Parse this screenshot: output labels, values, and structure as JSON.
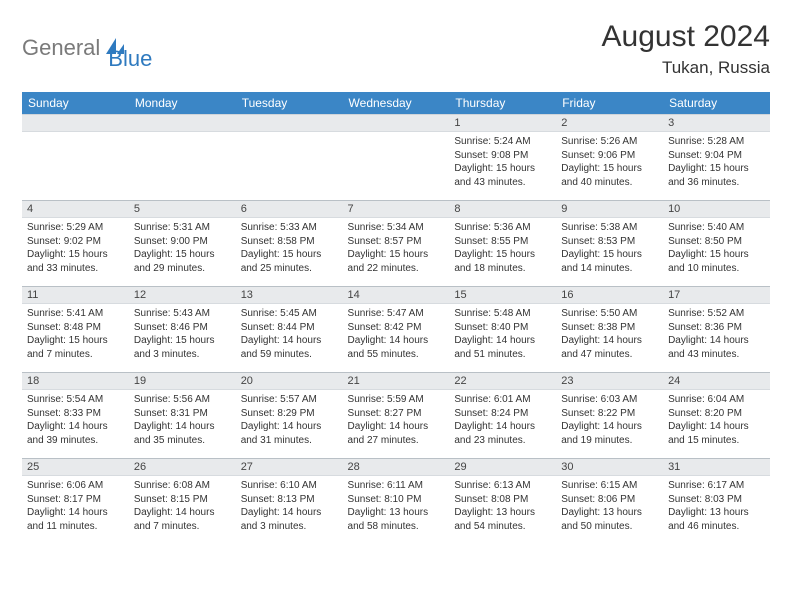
{
  "logo": {
    "word1": "General",
    "word2": "Blue",
    "icon_color": "#2f7abf"
  },
  "title": "August 2024",
  "location": "Tukan, Russia",
  "header_bg": "#3b86c6",
  "stripe_bg": "#e8eaec",
  "weekdays": [
    "Sunday",
    "Monday",
    "Tuesday",
    "Wednesday",
    "Thursday",
    "Friday",
    "Saturday"
  ],
  "weeks": [
    [
      null,
      null,
      null,
      null,
      {
        "n": "1",
        "sr": "5:24 AM",
        "ss": "9:08 PM",
        "dl": "15 hours and 43 minutes."
      },
      {
        "n": "2",
        "sr": "5:26 AM",
        "ss": "9:06 PM",
        "dl": "15 hours and 40 minutes."
      },
      {
        "n": "3",
        "sr": "5:28 AM",
        "ss": "9:04 PM",
        "dl": "15 hours and 36 minutes."
      }
    ],
    [
      {
        "n": "4",
        "sr": "5:29 AM",
        "ss": "9:02 PM",
        "dl": "15 hours and 33 minutes."
      },
      {
        "n": "5",
        "sr": "5:31 AM",
        "ss": "9:00 PM",
        "dl": "15 hours and 29 minutes."
      },
      {
        "n": "6",
        "sr": "5:33 AM",
        "ss": "8:58 PM",
        "dl": "15 hours and 25 minutes."
      },
      {
        "n": "7",
        "sr": "5:34 AM",
        "ss": "8:57 PM",
        "dl": "15 hours and 22 minutes."
      },
      {
        "n": "8",
        "sr": "5:36 AM",
        "ss": "8:55 PM",
        "dl": "15 hours and 18 minutes."
      },
      {
        "n": "9",
        "sr": "5:38 AM",
        "ss": "8:53 PM",
        "dl": "15 hours and 14 minutes."
      },
      {
        "n": "10",
        "sr": "5:40 AM",
        "ss": "8:50 PM",
        "dl": "15 hours and 10 minutes."
      }
    ],
    [
      {
        "n": "11",
        "sr": "5:41 AM",
        "ss": "8:48 PM",
        "dl": "15 hours and 7 minutes."
      },
      {
        "n": "12",
        "sr": "5:43 AM",
        "ss": "8:46 PM",
        "dl": "15 hours and 3 minutes."
      },
      {
        "n": "13",
        "sr": "5:45 AM",
        "ss": "8:44 PM",
        "dl": "14 hours and 59 minutes."
      },
      {
        "n": "14",
        "sr": "5:47 AM",
        "ss": "8:42 PM",
        "dl": "14 hours and 55 minutes."
      },
      {
        "n": "15",
        "sr": "5:48 AM",
        "ss": "8:40 PM",
        "dl": "14 hours and 51 minutes."
      },
      {
        "n": "16",
        "sr": "5:50 AM",
        "ss": "8:38 PM",
        "dl": "14 hours and 47 minutes."
      },
      {
        "n": "17",
        "sr": "5:52 AM",
        "ss": "8:36 PM",
        "dl": "14 hours and 43 minutes."
      }
    ],
    [
      {
        "n": "18",
        "sr": "5:54 AM",
        "ss": "8:33 PM",
        "dl": "14 hours and 39 minutes."
      },
      {
        "n": "19",
        "sr": "5:56 AM",
        "ss": "8:31 PM",
        "dl": "14 hours and 35 minutes."
      },
      {
        "n": "20",
        "sr": "5:57 AM",
        "ss": "8:29 PM",
        "dl": "14 hours and 31 minutes."
      },
      {
        "n": "21",
        "sr": "5:59 AM",
        "ss": "8:27 PM",
        "dl": "14 hours and 27 minutes."
      },
      {
        "n": "22",
        "sr": "6:01 AM",
        "ss": "8:24 PM",
        "dl": "14 hours and 23 minutes."
      },
      {
        "n": "23",
        "sr": "6:03 AM",
        "ss": "8:22 PM",
        "dl": "14 hours and 19 minutes."
      },
      {
        "n": "24",
        "sr": "6:04 AM",
        "ss": "8:20 PM",
        "dl": "14 hours and 15 minutes."
      }
    ],
    [
      {
        "n": "25",
        "sr": "6:06 AM",
        "ss": "8:17 PM",
        "dl": "14 hours and 11 minutes."
      },
      {
        "n": "26",
        "sr": "6:08 AM",
        "ss": "8:15 PM",
        "dl": "14 hours and 7 minutes."
      },
      {
        "n": "27",
        "sr": "6:10 AM",
        "ss": "8:13 PM",
        "dl": "14 hours and 3 minutes."
      },
      {
        "n": "28",
        "sr": "6:11 AM",
        "ss": "8:10 PM",
        "dl": "13 hours and 58 minutes."
      },
      {
        "n": "29",
        "sr": "6:13 AM",
        "ss": "8:08 PM",
        "dl": "13 hours and 54 minutes."
      },
      {
        "n": "30",
        "sr": "6:15 AM",
        "ss": "8:06 PM",
        "dl": "13 hours and 50 minutes."
      },
      {
        "n": "31",
        "sr": "6:17 AM",
        "ss": "8:03 PM",
        "dl": "13 hours and 46 minutes."
      }
    ]
  ],
  "labels": {
    "sunrise": "Sunrise:",
    "sunset": "Sunset:",
    "daylight": "Daylight:"
  }
}
